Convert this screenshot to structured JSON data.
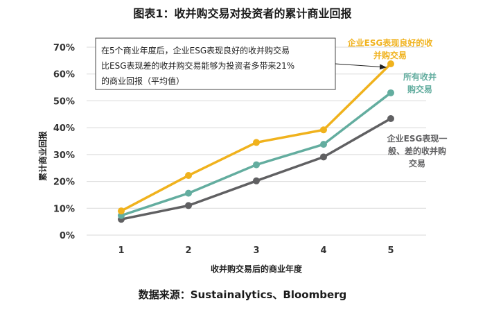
{
  "chart_data": {
    "type": "line",
    "title": "图表1：收并购交易对投资者的累计商业回报",
    "xlabel": "收并购交易后的商业年度",
    "ylabel": "累计商业回报",
    "source": "数据来源：Sustainalytics、Bloomberg",
    "x": [
      1,
      2,
      3,
      4,
      5
    ],
    "x_tick_labels": [
      "1",
      "2",
      "3",
      "4",
      "5"
    ],
    "ylim": [
      0,
      70
    ],
    "y_ticks": [
      0,
      10,
      20,
      30,
      40,
      50,
      60,
      70
    ],
    "y_tick_labels": [
      "0%",
      "10%",
      "20%",
      "30%",
      "40%",
      "50%",
      "60%",
      "70%"
    ],
    "grid": true,
    "series": [
      {
        "name": "企业ESG表现良好的收并购交易",
        "label_lines": [
          "企业ESG表现良好的收",
          "并购交易"
        ],
        "color": "#f0b21d",
        "values": [
          9.0,
          22.2,
          34.5,
          39.2,
          63.8
        ]
      },
      {
        "name": "所有收并购交易",
        "label_lines": [
          "所有收并",
          "购交易"
        ],
        "color": "#63ad9f",
        "values": [
          7.3,
          15.6,
          26.2,
          33.8,
          53.0
        ]
      },
      {
        "name": "企业ESG表现一般、差的收并购交易",
        "label_lines": [
          "企业ESG表现一",
          "般、差的收并购",
          "交易"
        ],
        "color": "#606062",
        "values": [
          5.9,
          11.0,
          20.2,
          29.1,
          43.4
        ]
      }
    ],
    "annotation": {
      "lines": [
        "在5个商业年度后，企业ESG表现良好的收并购交易",
        "比ESG表现差的收并购交易能够为投资者多带来21%",
        "的商业回报（平均值）"
      ]
    }
  }
}
